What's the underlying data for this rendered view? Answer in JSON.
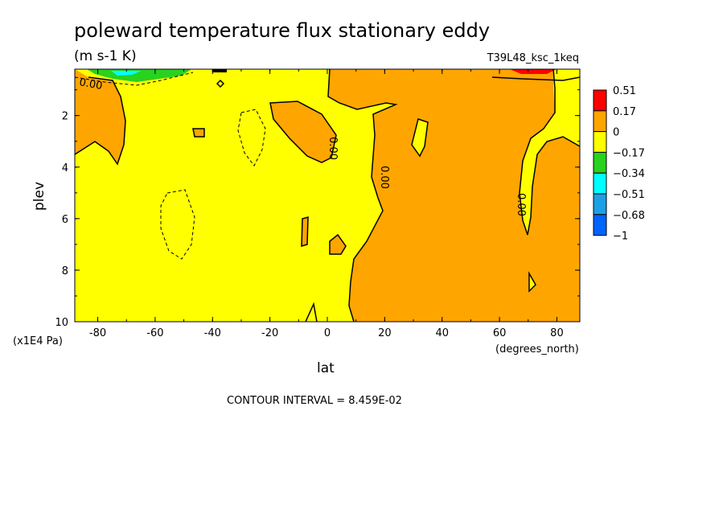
{
  "chart_data": {
    "type": "heatmap",
    "title": "poleward temperature flux stationary eddy",
    "units": "(m s-1 K)",
    "experiment": "T39L48_ksc_1keq",
    "xlabel": "lat",
    "xunits": "(degrees_north)",
    "ylabel": "plev",
    "yunits": "(x1E4 Pa)",
    "xlim": [
      -88,
      88
    ],
    "ylim": [
      10,
      0.2
    ],
    "xticks": [
      "-80",
      "-60",
      "-40",
      "-20",
      "0",
      "20",
      "40",
      "60",
      "80"
    ],
    "yticks": [
      "2",
      "4",
      "6",
      "8",
      "10"
    ],
    "contour_interval": "CONTOUR INTERVAL = 8.459E-02",
    "contour_labels": [
      "0.00",
      "0.00",
      "0.00",
      "0.00"
    ],
    "legend": {
      "labels": [
        "0.51",
        "0.17",
        "0",
        "−0.17",
        "−0.34",
        "−0.51",
        "−0.68",
        "−1"
      ],
      "colors": [
        "#ff0000",
        "#ffa500",
        "#ffff00",
        "#28d21e",
        "#00ffff",
        "#1ea0e6",
        "#0064ff"
      ]
    }
  }
}
